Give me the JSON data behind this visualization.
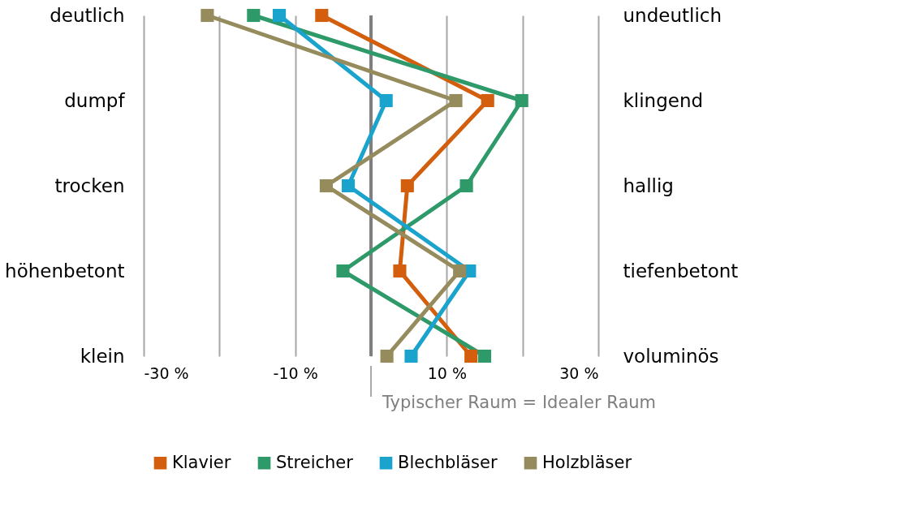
{
  "chart_data": {
    "type": "line",
    "orientation": "horizontal",
    "categories": [
      "deutlich",
      "dumpf",
      "trocken",
      "höhenbetont",
      "klein"
    ],
    "y2_categories": [
      "undeutlich",
      "klingend",
      "hallig",
      "tiefenbetont",
      "voluminös"
    ],
    "series": [
      {
        "name": "Klavier",
        "color": "#d35f0e",
        "values": [
          -6.5,
          15.4,
          4.8,
          3.8,
          13.2
        ]
      },
      {
        "name": "Streicher",
        "color": "#2e9a6a",
        "values": [
          -15.5,
          19.9,
          12.6,
          -3.7,
          15.0
        ]
      },
      {
        "name": "Blechbläser",
        "color": "#1aa3cc",
        "values": [
          -12.1,
          2.0,
          -3.0,
          13.0,
          5.3
        ]
      },
      {
        "name": "Holzbläser",
        "color": "#958b5c",
        "values": [
          -21.6,
          11.2,
          -5.9,
          11.7,
          2.1
        ]
      }
    ],
    "xlim": [
      -30,
      30
    ],
    "xticks": [
      {
        "value": -30,
        "label": "-30 %"
      },
      {
        "value": -20,
        "label": null
      },
      {
        "value": -10,
        "label": "-10 %"
      },
      {
        "value": 0,
        "label": null
      },
      {
        "value": 10,
        "label": "10 %"
      },
      {
        "value": 20,
        "label": null
      },
      {
        "value": 30,
        "label": "30 %"
      }
    ],
    "ref_lines": [
      {
        "axis": "x",
        "value": 0,
        "label": "Typischer Raum = Idealer Raum",
        "color": "#7f7f7f"
      }
    ],
    "grid": "x",
    "legend": "bottom",
    "marker": "square",
    "line_style": "solid"
  }
}
